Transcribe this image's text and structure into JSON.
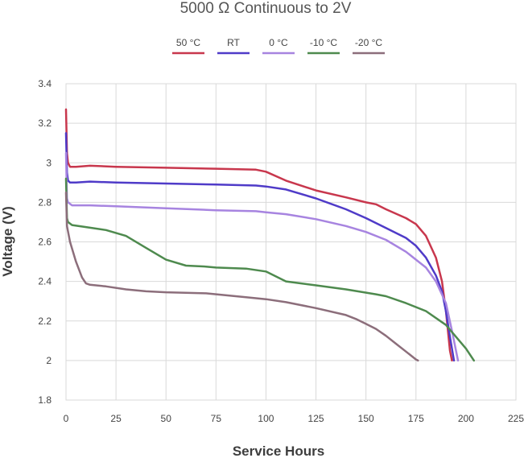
{
  "chart_data": {
    "type": "line",
    "title": "5000 Ω Continuous to 2V",
    "xlabel": "Service Hours",
    "ylabel": "Voltage (V)",
    "xlim": [
      0,
      225
    ],
    "ylim": [
      1.8,
      3.4
    ],
    "x_ticks": [
      0,
      25,
      50,
      75,
      100,
      125,
      150,
      175,
      200,
      225
    ],
    "y_ticks": [
      1.8,
      2,
      2.2,
      2.4,
      2.6,
      2.8,
      3,
      3.2,
      3.4
    ],
    "x_tick_labels": [
      "0",
      "25",
      "50",
      "75",
      "100",
      "125",
      "150",
      "175",
      "200",
      "225"
    ],
    "y_tick_labels": [
      "1.8",
      "2",
      "2.2",
      "2.4",
      "2.6",
      "2.8",
      "3",
      "3.2",
      "3.4"
    ],
    "grid": true,
    "legend_position": "top-center",
    "series": [
      {
        "name": "50 °C",
        "color": "#c8374d",
        "points": [
          [
            0,
            3.27
          ],
          [
            0.5,
            3.05
          ],
          [
            1,
            3.0
          ],
          [
            2,
            2.98
          ],
          [
            5,
            2.98
          ],
          [
            12,
            2.985
          ],
          [
            25,
            2.98
          ],
          [
            50,
            2.975
          ],
          [
            75,
            2.97
          ],
          [
            95,
            2.965
          ],
          [
            100,
            2.955
          ],
          [
            110,
            2.91
          ],
          [
            125,
            2.86
          ],
          [
            140,
            2.825
          ],
          [
            150,
            2.8
          ],
          [
            155,
            2.79
          ],
          [
            160,
            2.765
          ],
          [
            170,
            2.72
          ],
          [
            175,
            2.69
          ],
          [
            180,
            2.63
          ],
          [
            185,
            2.52
          ],
          [
            188,
            2.4
          ],
          [
            190,
            2.25
          ],
          [
            191,
            2.15
          ],
          [
            192,
            2.05
          ],
          [
            193,
            2.0
          ]
        ]
      },
      {
        "name": "RT",
        "color": "#4f3bc8",
        "points": [
          [
            0,
            3.15
          ],
          [
            0.5,
            2.95
          ],
          [
            1,
            2.91
          ],
          [
            2,
            2.9
          ],
          [
            5,
            2.9
          ],
          [
            12,
            2.905
          ],
          [
            25,
            2.9
          ],
          [
            50,
            2.895
          ],
          [
            75,
            2.89
          ],
          [
            95,
            2.885
          ],
          [
            100,
            2.88
          ],
          [
            110,
            2.865
          ],
          [
            125,
            2.82
          ],
          [
            140,
            2.765
          ],
          [
            150,
            2.72
          ],
          [
            160,
            2.67
          ],
          [
            170,
            2.62
          ],
          [
            175,
            2.58
          ],
          [
            180,
            2.52
          ],
          [
            185,
            2.43
          ],
          [
            188,
            2.35
          ],
          [
            190,
            2.25
          ],
          [
            192,
            2.12
          ],
          [
            194,
            2.0
          ]
        ]
      },
      {
        "name": "0 °C",
        "color": "#a784e0",
        "points": [
          [
            0,
            3.05
          ],
          [
            0.5,
            2.82
          ],
          [
            1,
            2.8
          ],
          [
            3,
            2.785
          ],
          [
            12,
            2.785
          ],
          [
            25,
            2.78
          ],
          [
            50,
            2.77
          ],
          [
            75,
            2.76
          ],
          [
            95,
            2.755
          ],
          [
            100,
            2.75
          ],
          [
            110,
            2.74
          ],
          [
            125,
            2.715
          ],
          [
            140,
            2.68
          ],
          [
            150,
            2.65
          ],
          [
            160,
            2.61
          ],
          [
            170,
            2.55
          ],
          [
            175,
            2.51
          ],
          [
            180,
            2.47
          ],
          [
            185,
            2.4
          ],
          [
            190,
            2.29
          ],
          [
            193,
            2.15
          ],
          [
            195,
            2.05
          ],
          [
            196,
            2.0
          ]
        ]
      },
      {
        "name": "-10 °C",
        "color": "#4e8a4e",
        "points": [
          [
            0,
            2.92
          ],
          [
            0.5,
            2.72
          ],
          [
            1,
            2.7
          ],
          [
            3,
            2.685
          ],
          [
            10,
            2.675
          ],
          [
            20,
            2.66
          ],
          [
            30,
            2.63
          ],
          [
            40,
            2.57
          ],
          [
            50,
            2.51
          ],
          [
            60,
            2.48
          ],
          [
            70,
            2.475
          ],
          [
            75,
            2.47
          ],
          [
            90,
            2.465
          ],
          [
            100,
            2.45
          ],
          [
            110,
            2.4
          ],
          [
            125,
            2.38
          ],
          [
            140,
            2.36
          ],
          [
            155,
            2.335
          ],
          [
            160,
            2.325
          ],
          [
            170,
            2.29
          ],
          [
            180,
            2.25
          ],
          [
            190,
            2.18
          ],
          [
            195,
            2.12
          ],
          [
            200,
            2.06
          ],
          [
            204,
            2.0
          ]
        ]
      },
      {
        "name": "-20 °C",
        "color": "#8c6e7b",
        "points": [
          [
            0,
            2.85
          ],
          [
            0.5,
            2.68
          ],
          [
            2,
            2.6
          ],
          [
            5,
            2.5
          ],
          [
            8,
            2.42
          ],
          [
            10,
            2.39
          ],
          [
            12,
            2.383
          ],
          [
            20,
            2.375
          ],
          [
            30,
            2.36
          ],
          [
            40,
            2.35
          ],
          [
            50,
            2.345
          ],
          [
            70,
            2.34
          ],
          [
            90,
            2.32
          ],
          [
            100,
            2.31
          ],
          [
            110,
            2.295
          ],
          [
            125,
            2.265
          ],
          [
            140,
            2.23
          ],
          [
            145,
            2.21
          ],
          [
            150,
            2.185
          ],
          [
            155,
            2.16
          ],
          [
            160,
            2.125
          ],
          [
            165,
            2.085
          ],
          [
            170,
            2.045
          ],
          [
            175,
            2.005
          ],
          [
            176,
            2.0
          ]
        ]
      }
    ]
  }
}
